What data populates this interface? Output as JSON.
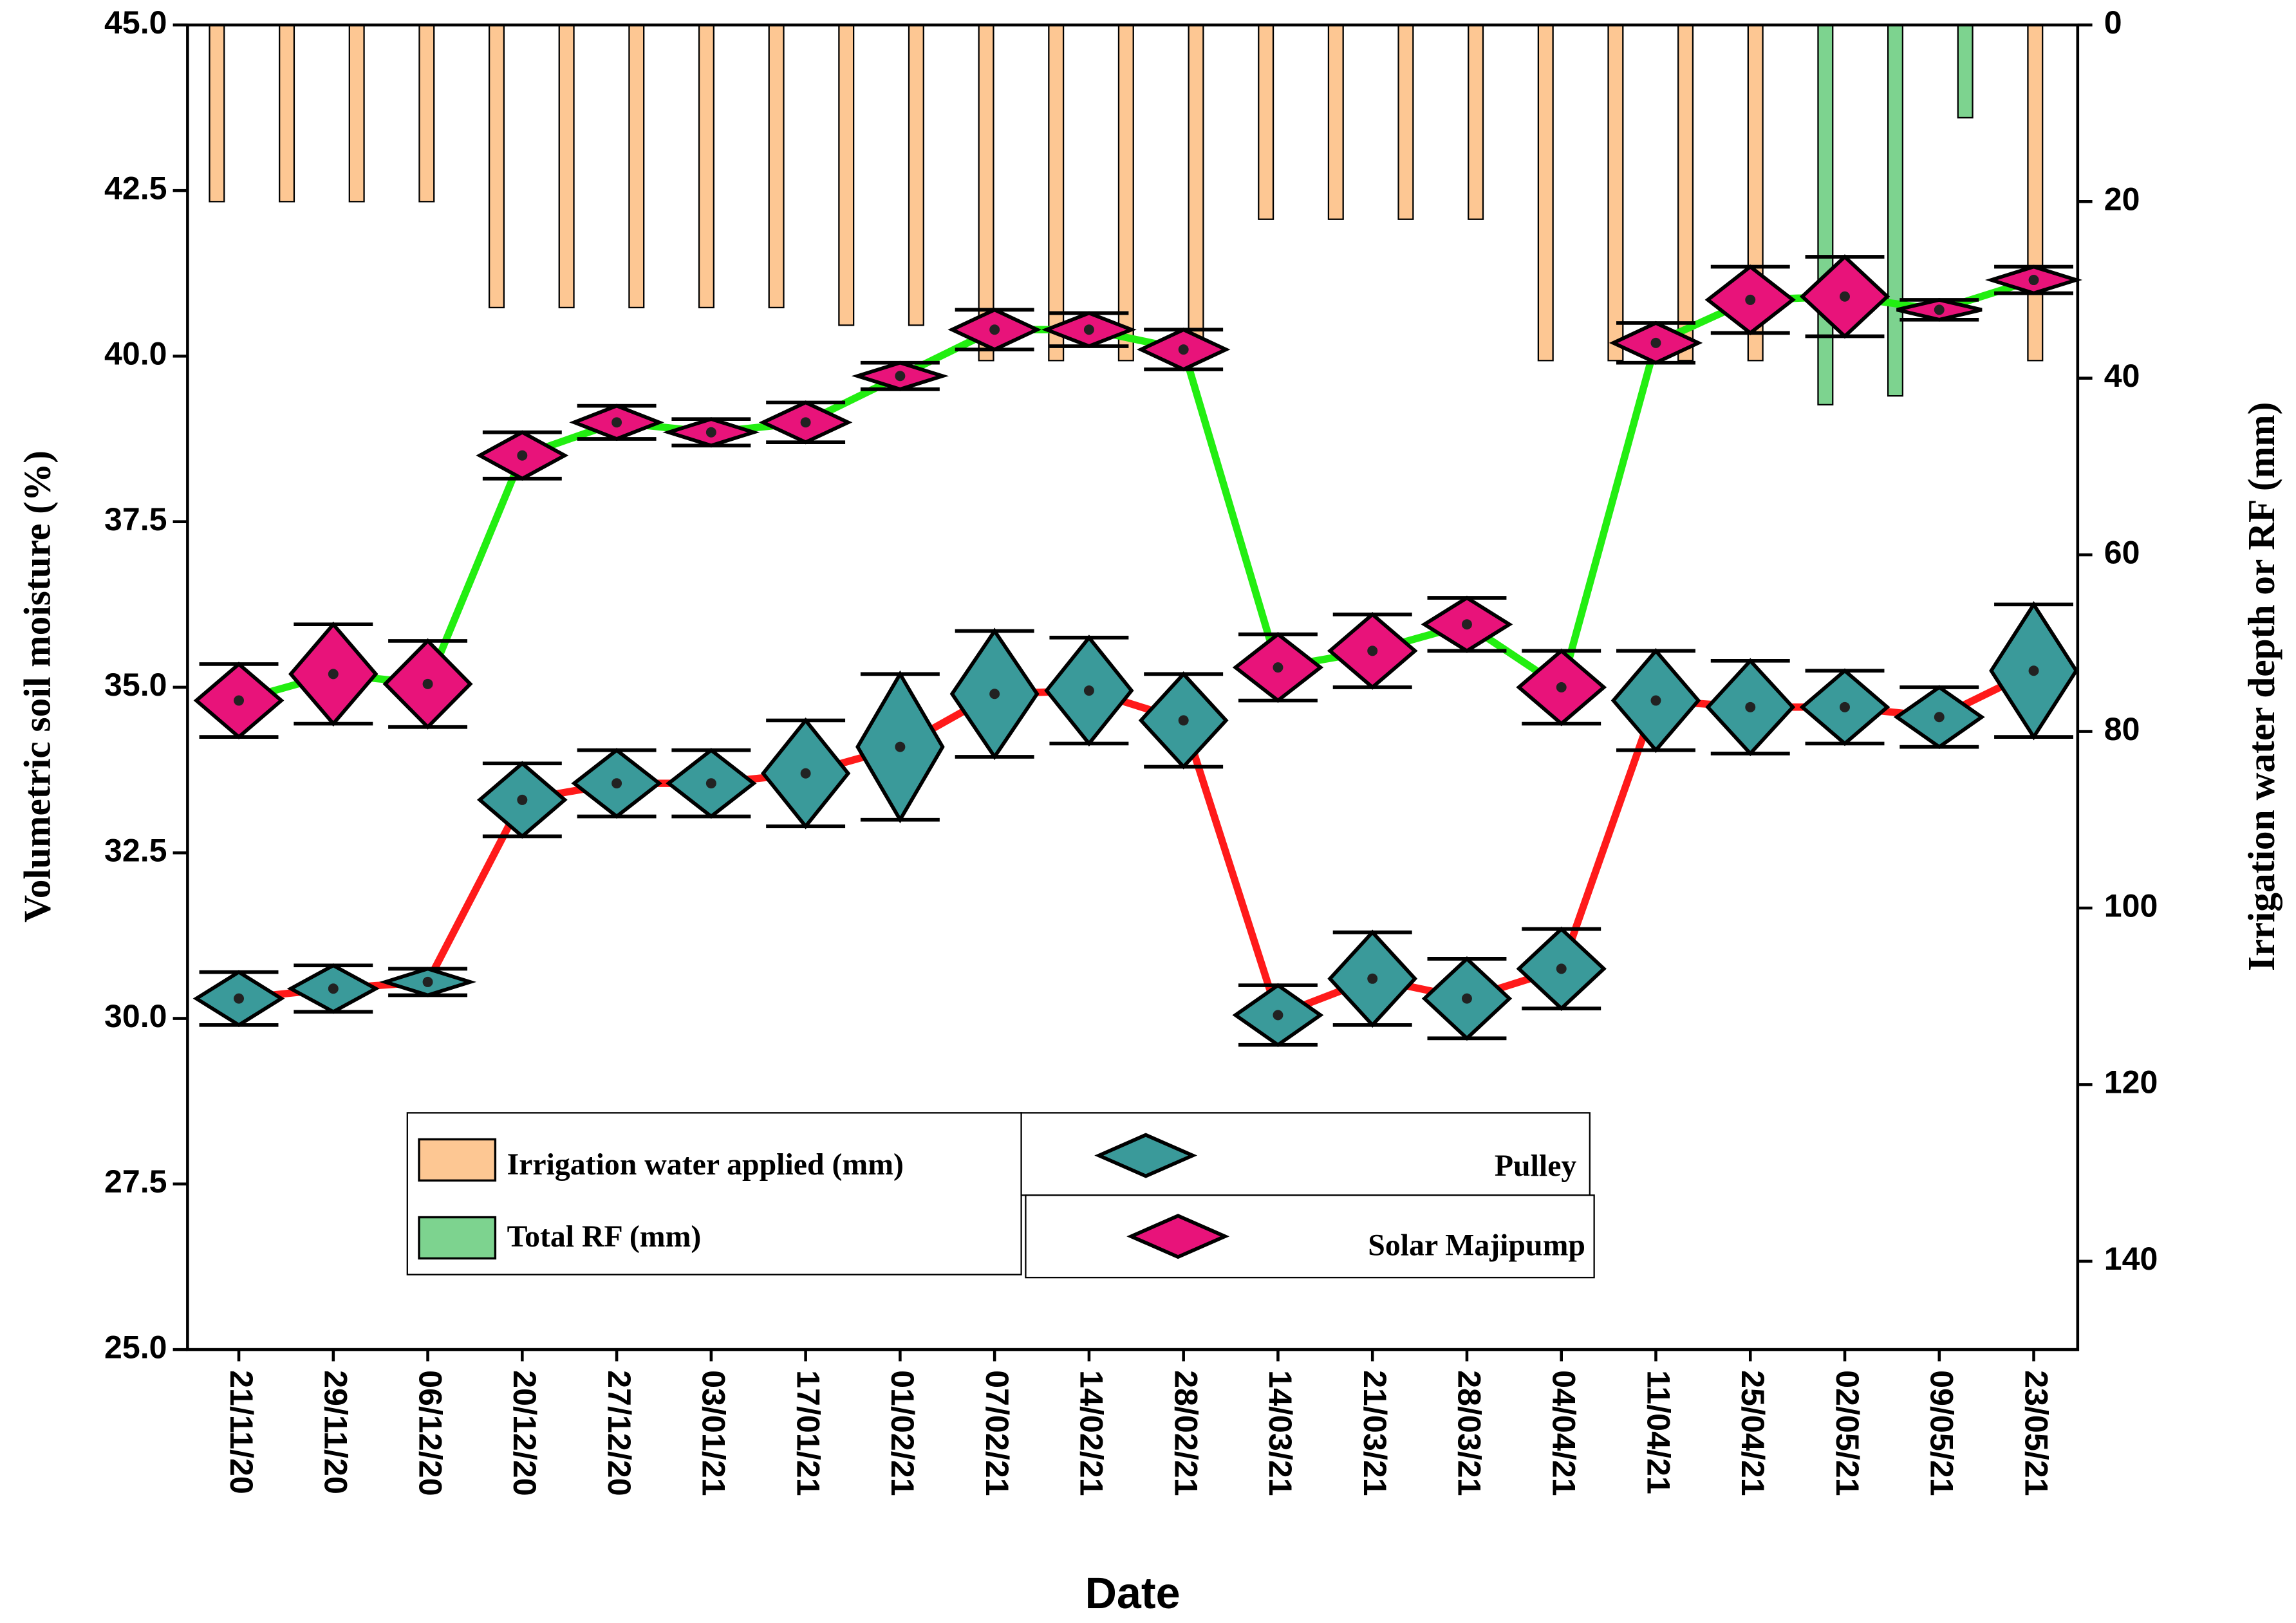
{
  "chart_data": {
    "type": "scatter",
    "xlabel": "Date",
    "ylabel": "Volumetric soil moisture (%)",
    "y2label": "Irrigation water depth or RF (mm)",
    "categories": [
      "21/11/20",
      "29/11/20",
      "06/12/20",
      "20/12/20",
      "27/12/20",
      "03/01/21",
      "17/01/21",
      "01/02/21",
      "07/02/21",
      "14/02/21",
      "28/02/21",
      "14/03/21",
      "21/03/21",
      "28/03/21",
      "04/04/21",
      "11/04/21",
      "25/04/21",
      "02/05/21",
      "09/05/21",
      "23/05/21"
    ],
    "ylim": [
      25,
      45
    ],
    "yticks": [
      {
        "value": 25,
        "label": "25.0"
      },
      27.5,
      {
        "value": 30,
        "label": "30.0"
      },
      32.5,
      {
        "value": 35,
        "label": "35.0"
      },
      37.5,
      {
        "value": 40,
        "label": "40.0"
      },
      42.5,
      {
        "value": 45,
        "label": "45.0"
      }
    ],
    "y2lim": [
      150,
      0
    ],
    "y2ticks": [
      0,
      20,
      40,
      60,
      80,
      100,
      120,
      140
    ],
    "series": [
      {
        "name": "Pulley",
        "color": "#3a9a9a",
        "line_color": "#ff1a1a",
        "values": [
          30.3,
          30.45,
          30.55,
          33.3,
          33.55,
          33.55,
          33.7,
          34.1,
          34.9,
          34.95,
          34.5,
          30.05,
          30.6,
          30.3,
          30.75,
          34.8,
          34.7,
          34.7,
          34.55,
          35.25
        ],
        "errors": [
          0.4,
          0.35,
          0.2,
          0.55,
          0.5,
          0.5,
          0.8,
          1.1,
          0.95,
          0.8,
          0.7,
          0.45,
          0.7,
          0.6,
          0.6,
          0.75,
          0.7,
          0.55,
          0.45,
          1.0
        ]
      },
      {
        "name": "Solar Majipump",
        "color": "#e8137a",
        "line_color": "#22ee11",
        "values": [
          34.8,
          35.2,
          35.05,
          38.5,
          39.0,
          38.85,
          39.0,
          39.7,
          40.4,
          40.4,
          40.1,
          35.3,
          35.55,
          35.95,
          35.0,
          40.2,
          40.85,
          40.9,
          40.7,
          41.15
        ],
        "errors": [
          0.55,
          0.75,
          0.65,
          0.35,
          0.25,
          0.2,
          0.3,
          0.2,
          0.3,
          0.25,
          0.3,
          0.5,
          0.55,
          0.4,
          0.55,
          0.3,
          0.5,
          0.6,
          0.15,
          0.2
        ]
      }
    ],
    "bar_series": [
      {
        "name": "Irrigation water applied (mm)",
        "color": "#fdc793",
        "axis": "y2",
        "values": [
          20,
          20,
          20,
          20,
          32,
          32,
          32,
          32,
          32,
          34,
          34,
          38,
          38,
          38,
          37,
          22,
          22,
          22,
          22,
          38,
          38,
          38,
          38,
          null,
          null,
          null,
          38
        ]
      },
      {
        "name": "Total RF (mm)",
        "color": "#7dd38f",
        "axis": "y2",
        "values": [
          null,
          null,
          null,
          null,
          null,
          null,
          null,
          null,
          null,
          null,
          null,
          null,
          null,
          null,
          null,
          null,
          null,
          null,
          null,
          null,
          null,
          null,
          null,
          43,
          42,
          10.5,
          null
        ]
      }
    ]
  }
}
